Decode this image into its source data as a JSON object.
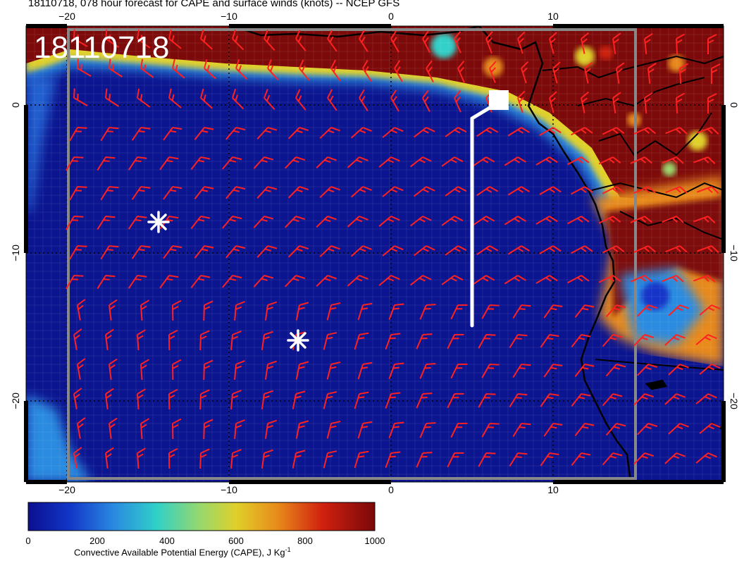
{
  "title": "18110718, 078 hour forecast for CAPE and surface winds (knots) -- NCEP GFS",
  "stamp": "18110718",
  "lon_ticks": [
    "−20",
    "−10",
    "0",
    "10"
  ],
  "lat_ticks": [
    "0",
    "−10",
    "−20"
  ],
  "colorbar": {
    "ticks": [
      "0",
      "200",
      "400",
      "600",
      "800",
      "1000"
    ],
    "label": "Convective Available Potential Energy (CAPE), J Kg",
    "label_sup": "-1",
    "colors": [
      "#0b0f8f",
      "#1236c8",
      "#2a8be0",
      "#30d0c8",
      "#9ad86a",
      "#e0d02a",
      "#e88a1a",
      "#d02010",
      "#7a0808"
    ]
  },
  "colors": {
    "ocean": "#0c1590",
    "cape_high": "#7d0a0a",
    "barb": "#ff2020",
    "coast": "#000000",
    "marker": "#ffffff"
  },
  "markers": [
    "asterisk",
    "asterisk",
    "flag-staff"
  ]
}
